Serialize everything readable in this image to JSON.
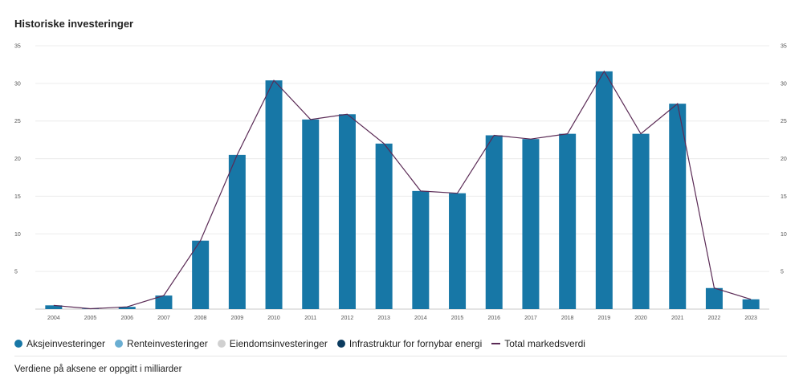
{
  "title": "Historiske investeringer",
  "note": "Verdiene på aksene er oppgitt i milliarder",
  "colors": {
    "aksje": "#1777a6",
    "rente": "#6aaed2",
    "eiendom": "#d0d0d0",
    "infra": "#0c3b5f",
    "total": "#5a2a55",
    "grid": "#ececec"
  },
  "legend": [
    {
      "label": "Aksjeinvesteringer",
      "kind": "dot",
      "color": "#1777a6"
    },
    {
      "label": "Renteinvesteringer",
      "kind": "dot",
      "color": "#6aaed2"
    },
    {
      "label": "Eiendomsinvesteringer",
      "kind": "dot",
      "color": "#d0d0d0"
    },
    {
      "label": "Infrastruktur for fornybar energi",
      "kind": "dot",
      "color": "#0c3b5f"
    },
    {
      "label": "Total markedsverdi",
      "kind": "line",
      "color": "#5a2a55"
    }
  ],
  "chart_data": {
    "type": "bar",
    "categories": [
      "2004",
      "2005",
      "2006",
      "2007",
      "2008",
      "2009",
      "2010",
      "2011",
      "2012",
      "2013",
      "2014",
      "2015",
      "2016",
      "2017",
      "2018",
      "2019",
      "2020",
      "2021",
      "2022",
      "2023"
    ],
    "series": [
      {
        "name": "Aksjeinvesteringer",
        "type": "bar",
        "values": [
          0.5,
          0.05,
          0.3,
          1.8,
          9.1,
          20.5,
          30.4,
          25.2,
          25.9,
          22.0,
          15.7,
          15.4,
          23.1,
          22.6,
          23.3,
          31.6,
          23.3,
          27.3,
          2.8,
          1.3
        ]
      },
      {
        "name": "Total markedsverdi",
        "type": "line",
        "values": [
          0.5,
          0.05,
          0.3,
          1.8,
          9.1,
          20.5,
          30.4,
          25.2,
          25.9,
          22.0,
          15.7,
          15.4,
          23.1,
          22.6,
          23.3,
          31.6,
          23.3,
          27.3,
          2.8,
          1.3
        ]
      }
    ],
    "yticks": [
      5,
      10,
      15,
      20,
      25,
      30,
      35
    ],
    "ylim": [
      0,
      35
    ],
    "grid": true,
    "legend_position": "bottom-left",
    "xlabel": "",
    "ylabel": ""
  }
}
